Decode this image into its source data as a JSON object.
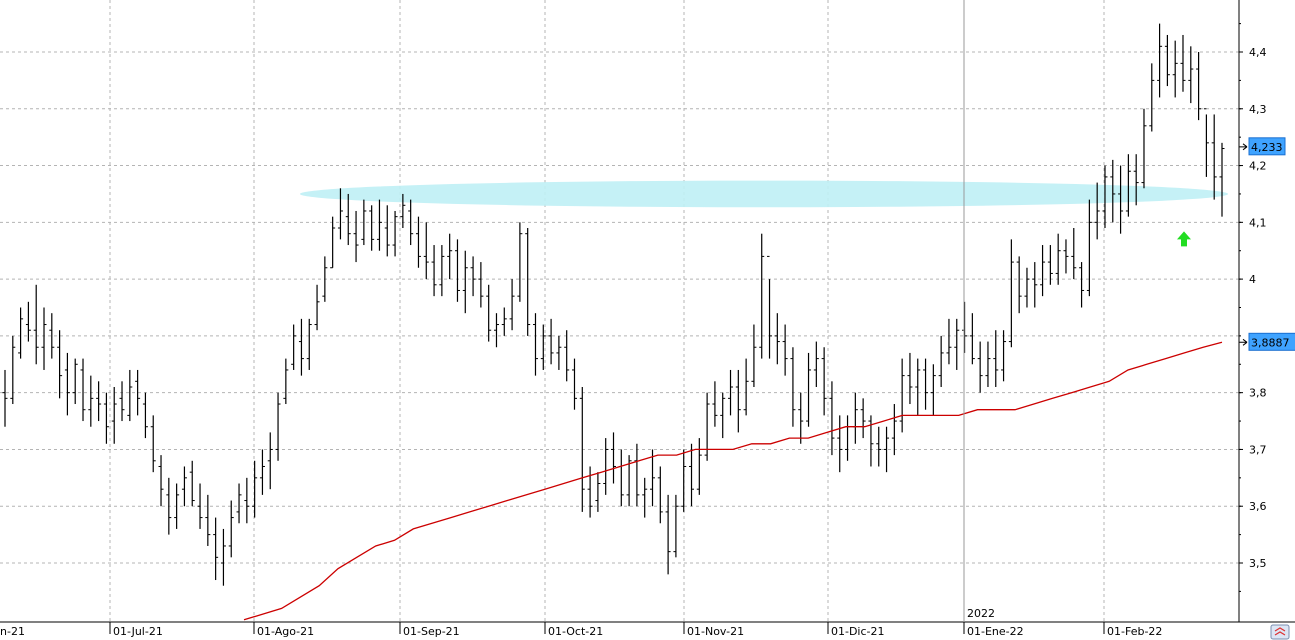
{
  "chart_data": {
    "type": "ohlc-bar",
    "ylim": [
      3.4,
      4.5
    ],
    "y_ticks": [
      {
        "value": 4.4,
        "label": "4,4"
      },
      {
        "value": 4.3,
        "label": "4,3"
      },
      {
        "value": 4.2,
        "label": "4,2"
      },
      {
        "value": 4.1,
        "label": "4,1"
      },
      {
        "value": 4.0,
        "label": "4"
      },
      {
        "value": 3.8,
        "label": "3,8"
      },
      {
        "value": 3.7,
        "label": "3,7"
      },
      {
        "value": 3.6,
        "label": "3,6"
      },
      {
        "value": 3.5,
        "label": "3,5"
      }
    ],
    "x_ticks": [
      {
        "index": -2,
        "label": "n-21"
      },
      {
        "index": 21,
        "label": "01-Jul-21"
      },
      {
        "index": 44,
        "label": "01-Ago-21"
      },
      {
        "index": 67,
        "label": "01-Sep-21"
      },
      {
        "index": 88,
        "label": "01-Oct-21"
      },
      {
        "index": 111,
        "label": "01-Nov-21"
      },
      {
        "index": 133,
        "label": "01-Dic-21"
      },
      {
        "index": 154,
        "label": "01-Ene-22"
      },
      {
        "index": 177,
        "label": "01-Feb-22"
      }
    ],
    "year_marker": {
      "index": 154,
      "label": "2022"
    },
    "badges": [
      {
        "value": 4.233,
        "label": "4,233"
      },
      {
        "value": 3.8887,
        "label": "3,8887"
      }
    ],
    "support_zone": {
      "center": 4.15,
      "half_height": 0.02,
      "from_index": 50,
      "to_index": 196
    },
    "signal_arrow": {
      "index": 190,
      "value": 4.07,
      "direction": "up",
      "color": "#22dd22"
    },
    "colors": {
      "bar": "#000000",
      "ma": "#cc0000",
      "zone": "#bff0f5",
      "badge": "#3fa3ff",
      "grid": "#b4b4b4"
    },
    "series": [
      {
        "kind": "ohlc",
        "values": [
          [
            3.8,
            3.84,
            3.74,
            3.79
          ],
          [
            3.79,
            3.9,
            3.78,
            3.88
          ],
          [
            3.87,
            3.95,
            3.86,
            3.93
          ],
          [
            3.92,
            3.96,
            3.89,
            3.91
          ],
          [
            3.91,
            3.99,
            3.85,
            3.88
          ],
          [
            3.88,
            3.95,
            3.84,
            3.92
          ],
          [
            3.91,
            3.94,
            3.86,
            3.88
          ],
          [
            3.88,
            3.91,
            3.79,
            3.83
          ],
          [
            3.84,
            3.87,
            3.76,
            3.8
          ],
          [
            3.8,
            3.86,
            3.78,
            3.85
          ],
          [
            3.84,
            3.86,
            3.75,
            3.77
          ],
          [
            3.77,
            3.83,
            3.74,
            3.79
          ],
          [
            3.79,
            3.82,
            3.75,
            3.78
          ],
          [
            3.78,
            3.8,
            3.71,
            3.74
          ],
          [
            3.75,
            3.81,
            3.71,
            3.78
          ],
          [
            3.79,
            3.82,
            3.75,
            3.77
          ],
          [
            3.76,
            3.84,
            3.75,
            3.81
          ],
          [
            3.82,
            3.84,
            3.76,
            3.79
          ],
          [
            3.78,
            3.8,
            3.72,
            3.74
          ],
          [
            3.74,
            3.76,
            3.66,
            3.68
          ],
          [
            3.67,
            3.69,
            3.6,
            3.63
          ],
          [
            3.62,
            3.65,
            3.55,
            3.58
          ],
          [
            3.58,
            3.64,
            3.56,
            3.62
          ],
          [
            3.63,
            3.67,
            3.6,
            3.65
          ],
          [
            3.66,
            3.68,
            3.6,
            3.61
          ],
          [
            3.6,
            3.64,
            3.56,
            3.58
          ],
          [
            3.58,
            3.62,
            3.53,
            3.55
          ],
          [
            3.55,
            3.58,
            3.47,
            3.51
          ],
          [
            3.5,
            3.56,
            3.46,
            3.53
          ],
          [
            3.53,
            3.61,
            3.51,
            3.58
          ],
          [
            3.59,
            3.64,
            3.57,
            3.62
          ],
          [
            3.61,
            3.65,
            3.57,
            3.6
          ],
          [
            3.6,
            3.68,
            3.58,
            3.65
          ],
          [
            3.65,
            3.7,
            3.62,
            3.67
          ],
          [
            3.68,
            3.73,
            3.63,
            3.7
          ],
          [
            3.7,
            3.8,
            3.68,
            3.78
          ],
          [
            3.79,
            3.86,
            3.78,
            3.84
          ],
          [
            3.85,
            3.92,
            3.84,
            3.9
          ],
          [
            3.89,
            3.93,
            3.83,
            3.86
          ],
          [
            3.86,
            3.93,
            3.84,
            3.92
          ],
          [
            3.92,
            3.99,
            3.91,
            3.96
          ],
          [
            3.97,
            4.04,
            3.96,
            4.02
          ],
          [
            4.02,
            4.11,
            4.02,
            4.09
          ],
          [
            4.09,
            4.16,
            4.07,
            4.12
          ],
          [
            4.11,
            4.15,
            4.06,
            4.08
          ],
          [
            4.08,
            4.12,
            4.03,
            4.06
          ],
          [
            4.07,
            4.14,
            4.06,
            4.12
          ],
          [
            4.12,
            4.13,
            4.05,
            4.07
          ],
          [
            4.07,
            4.14,
            4.05,
            4.1
          ],
          [
            4.09,
            4.13,
            4.04,
            4.06
          ],
          [
            4.06,
            4.12,
            4.04,
            4.11
          ],
          [
            4.11,
            4.15,
            4.09,
            4.13
          ],
          [
            4.12,
            4.14,
            4.06,
            4.08
          ],
          [
            4.08,
            4.11,
            4.02,
            4.04
          ],
          [
            4.04,
            4.1,
            4.0,
            4.03
          ],
          [
            4.03,
            4.06,
            3.97,
            3.99
          ],
          [
            3.99,
            4.06,
            3.97,
            4.04
          ],
          [
            4.04,
            4.08,
            4.0,
            4.05
          ],
          [
            4.05,
            4.07,
            3.96,
            3.98
          ],
          [
            3.98,
            4.05,
            3.94,
            4.02
          ],
          [
            4.02,
            4.04,
            3.97,
            4.0
          ],
          [
            4.0,
            4.03,
            3.95,
            3.97
          ],
          [
            3.97,
            3.99,
            3.89,
            3.91
          ],
          [
            3.91,
            3.94,
            3.88,
            3.92
          ],
          [
            3.92,
            3.95,
            3.9,
            3.93
          ],
          [
            3.93,
            4.0,
            3.91,
            3.97
          ],
          [
            3.97,
            4.1,
            3.96,
            4.08
          ],
          [
            4.08,
            4.09,
            3.9,
            3.92
          ],
          [
            3.92,
            3.94,
            3.83,
            3.86
          ],
          [
            3.86,
            3.92,
            3.84,
            3.9
          ],
          [
            3.9,
            3.93,
            3.85,
            3.87
          ],
          [
            3.87,
            3.9,
            3.84,
            3.88
          ],
          [
            3.88,
            3.91,
            3.82,
            3.84
          ],
          [
            3.84,
            3.86,
            3.77,
            3.79
          ],
          [
            3.79,
            3.81,
            3.59,
            3.63
          ],
          [
            3.63,
            3.67,
            3.58,
            3.6
          ],
          [
            3.61,
            3.66,
            3.59,
            3.64
          ],
          [
            3.64,
            3.72,
            3.62,
            3.7
          ],
          [
            3.7,
            3.73,
            3.64,
            3.67
          ],
          [
            3.67,
            3.7,
            3.6,
            3.62
          ],
          [
            3.62,
            3.69,
            3.6,
            3.68
          ],
          [
            3.68,
            3.71,
            3.6,
            3.62
          ],
          [
            3.62,
            3.65,
            3.58,
            3.63
          ],
          [
            3.63,
            3.7,
            3.6,
            3.65
          ],
          [
            3.65,
            3.67,
            3.57,
            3.59
          ],
          [
            3.59,
            3.62,
            3.48,
            3.52
          ],
          [
            3.52,
            3.62,
            3.51,
            3.6
          ],
          [
            3.6,
            3.7,
            3.59,
            3.67
          ],
          [
            3.67,
            3.71,
            3.6,
            3.63
          ],
          [
            3.63,
            3.72,
            3.62,
            3.69
          ],
          [
            3.69,
            3.8,
            3.68,
            3.78
          ],
          [
            3.78,
            3.82,
            3.74,
            3.76
          ],
          [
            3.76,
            3.8,
            3.72,
            3.79
          ],
          [
            3.79,
            3.84,
            3.76,
            3.81
          ],
          [
            3.81,
            3.84,
            3.73,
            3.77
          ],
          [
            3.77,
            3.86,
            3.76,
            3.82
          ],
          [
            3.82,
            3.92,
            3.81,
            3.88
          ],
          [
            3.88,
            4.08,
            3.86,
            4.04
          ],
          [
            4.04,
            4.0,
            3.86,
            3.9
          ],
          [
            3.9,
            3.94,
            3.85,
            3.89
          ],
          [
            3.89,
            3.92,
            3.83,
            3.86
          ],
          [
            3.86,
            3.88,
            3.74,
            3.77
          ],
          [
            3.77,
            3.8,
            3.71,
            3.75
          ],
          [
            3.75,
            3.87,
            3.74,
            3.84
          ],
          [
            3.84,
            3.89,
            3.81,
            3.86
          ],
          [
            3.86,
            3.88,
            3.76,
            3.79
          ],
          [
            3.79,
            3.82,
            3.69,
            3.72
          ],
          [
            3.72,
            3.76,
            3.66,
            3.7
          ],
          [
            3.7,
            3.76,
            3.68,
            3.74
          ],
          [
            3.74,
            3.8,
            3.71,
            3.77
          ],
          [
            3.77,
            3.79,
            3.72,
            3.75
          ],
          [
            3.75,
            3.76,
            3.67,
            3.71
          ],
          [
            3.71,
            3.74,
            3.67,
            3.7
          ],
          [
            3.7,
            3.74,
            3.66,
            3.72
          ],
          [
            3.72,
            3.78,
            3.69,
            3.75
          ],
          [
            3.75,
            3.86,
            3.73,
            3.83
          ],
          [
            3.83,
            3.87,
            3.78,
            3.81
          ],
          [
            3.81,
            3.86,
            3.76,
            3.84
          ],
          [
            3.84,
            3.86,
            3.77,
            3.8
          ],
          [
            3.8,
            3.85,
            3.76,
            3.83
          ],
          [
            3.83,
            3.9,
            3.81,
            3.87
          ],
          [
            3.87,
            3.93,
            3.85,
            3.88
          ],
          [
            3.88,
            3.93,
            3.84,
            3.91
          ],
          [
            3.91,
            3.96,
            3.87,
            3.9
          ],
          [
            3.9,
            3.94,
            3.85,
            3.86
          ],
          [
            3.86,
            3.89,
            3.8,
            3.83
          ],
          [
            3.83,
            3.89,
            3.81,
            3.86
          ],
          [
            3.86,
            3.91,
            3.81,
            3.84
          ],
          [
            3.84,
            3.91,
            3.82,
            3.89
          ],
          [
            3.89,
            4.07,
            3.88,
            4.03
          ],
          [
            4.03,
            4.04,
            3.94,
            3.97
          ],
          [
            3.97,
            4.02,
            3.95,
            4.0
          ],
          [
            4.0,
            4.03,
            3.95,
            3.99
          ],
          [
            3.99,
            4.06,
            3.97,
            4.03
          ],
          [
            4.03,
            4.06,
            3.99,
            4.01
          ],
          [
            4.01,
            4.08,
            3.99,
            4.05
          ],
          [
            4.05,
            4.07,
            4.01,
            4.04
          ],
          [
            4.04,
            4.09,
            4.0,
            4.02
          ],
          [
            4.02,
            4.03,
            3.95,
            3.98
          ],
          [
            3.98,
            4.14,
            3.97,
            4.1
          ],
          [
            4.1,
            4.17,
            4.07,
            4.12
          ],
          [
            4.12,
            4.2,
            4.09,
            4.18
          ],
          [
            4.18,
            4.21,
            4.1,
            4.15
          ],
          [
            4.15,
            4.2,
            4.08,
            4.12
          ],
          [
            4.12,
            4.22,
            4.11,
            4.19
          ],
          [
            4.19,
            4.22,
            4.13,
            4.17
          ],
          [
            4.17,
            4.3,
            4.16,
            4.27
          ],
          [
            4.27,
            4.38,
            4.26,
            4.35
          ],
          [
            4.35,
            4.45,
            4.32,
            4.41
          ],
          [
            4.41,
            4.43,
            4.34,
            4.36
          ],
          [
            4.36,
            4.42,
            4.32,
            4.38
          ],
          [
            4.38,
            4.43,
            4.33,
            4.35
          ],
          [
            4.35,
            4.41,
            4.31,
            4.37
          ],
          [
            4.37,
            4.4,
            4.28,
            4.3
          ],
          [
            4.3,
            4.29,
            4.18,
            4.24
          ],
          [
            4.24,
            4.29,
            4.14,
            4.18
          ],
          [
            4.18,
            4.24,
            4.11,
            4.23
          ]
        ]
      },
      {
        "kind": "moving-average",
        "values": [
          3.4,
          3.41,
          3.42,
          3.44,
          3.46,
          3.49,
          3.51,
          3.53,
          3.54,
          3.56,
          3.57,
          3.58,
          3.59,
          3.6,
          3.61,
          3.62,
          3.63,
          3.64,
          3.65,
          3.66,
          3.67,
          3.68,
          3.69,
          3.69,
          3.7,
          3.7,
          3.7,
          3.71,
          3.71,
          3.72,
          3.72,
          3.73,
          3.74,
          3.74,
          3.75,
          3.76,
          3.76,
          3.76,
          3.76,
          3.77,
          3.77,
          3.77,
          3.78,
          3.79,
          3.8,
          3.81,
          3.82,
          3.84,
          3.85,
          3.86,
          3.87,
          3.88,
          3.8887
        ]
      }
    ]
  }
}
